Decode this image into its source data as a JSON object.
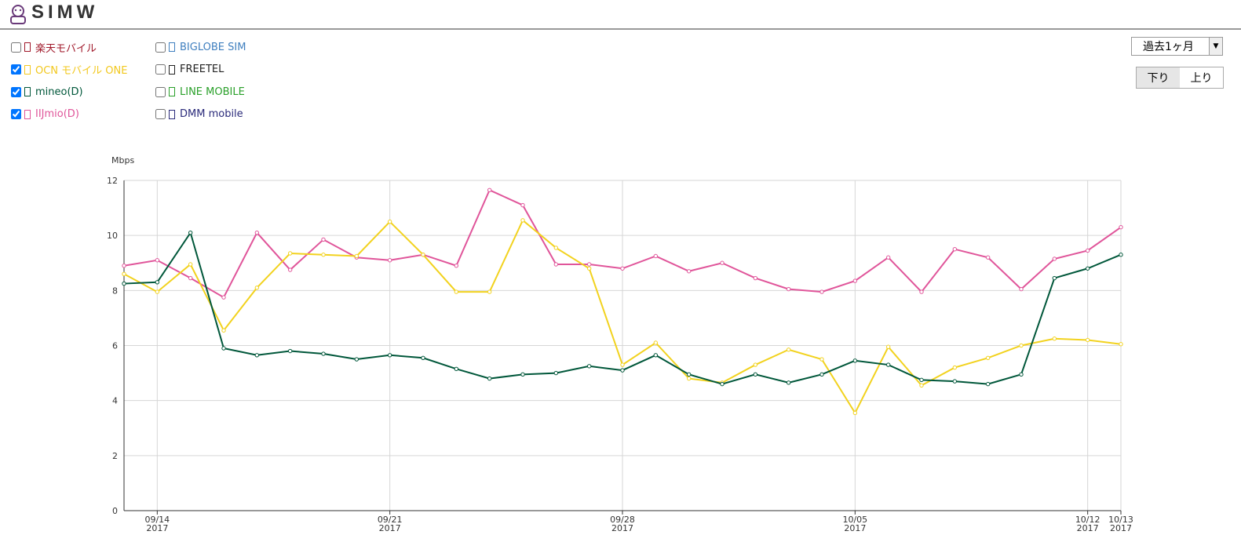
{
  "header": {
    "logo": "SIMW"
  },
  "controls": {
    "period": "過去1ヶ月",
    "buttons": [
      {
        "label": "下り",
        "active": true
      },
      {
        "label": "上り",
        "active": false
      }
    ]
  },
  "chart_data": {
    "type": "line",
    "y_label": "Mbps",
    "legend": [
      {
        "name": "楽天モバイル",
        "color": "#a0182a",
        "checked": false
      },
      {
        "name": "OCN モバイル ONE",
        "color": "#f2c81e",
        "checked": true
      },
      {
        "name": "mineo(D)",
        "color": "#00573a",
        "checked": true
      },
      {
        "name": "IIJmio(D)",
        "color": "#e0559a",
        "checked": true
      },
      {
        "name": "BIGLOBE SIM",
        "color": "#3f7fbf",
        "checked": false
      },
      {
        "name": "FREETEL",
        "color": "#222222",
        "checked": false
      },
      {
        "name": "LINE MOBILE",
        "color": "#2aa02a",
        "checked": false
      },
      {
        "name": "DMM mobile",
        "color": "#2a2a7a",
        "checked": false
      }
    ],
    "x": [
      "2017-09-13",
      "2017-09-14",
      "2017-09-15",
      "2017-09-16",
      "2017-09-17",
      "2017-09-18",
      "2017-09-19",
      "2017-09-20",
      "2017-09-21",
      "2017-09-22",
      "2017-09-23",
      "2017-09-24",
      "2017-09-25",
      "2017-09-26",
      "2017-09-27",
      "2017-09-28",
      "2017-09-29",
      "2017-09-30",
      "2017-10-01",
      "2017-10-02",
      "2017-10-03",
      "2017-10-04",
      "2017-10-05",
      "2017-10-06",
      "2017-10-07",
      "2017-10-08",
      "2017-10-09",
      "2017-10-10",
      "2017-10-11",
      "2017-10-12",
      "2017-10-13"
    ],
    "series": [
      {
        "color": "#e0559a",
        "values": [
          8.9,
          9.1,
          8.45,
          7.75,
          10.1,
          8.75,
          9.85,
          9.2,
          9.1,
          9.3,
          8.9,
          11.65,
          11.1,
          8.95,
          8.95,
          8.8,
          9.25,
          8.7,
          9.0,
          8.45,
          8.05,
          7.95,
          8.35,
          9.2,
          7.95,
          9.5,
          9.2,
          8.05,
          9.15,
          9.45,
          10.3
        ]
      },
      {
        "color": "#f2d21e",
        "values": [
          8.6,
          7.95,
          8.95,
          6.55,
          8.1,
          9.35,
          9.3,
          9.25,
          10.5,
          9.3,
          7.95,
          7.95,
          10.55,
          9.55,
          8.8,
          5.3,
          6.1,
          4.8,
          4.65,
          5.3,
          5.85,
          5.5,
          3.55,
          5.95,
          4.55,
          5.2,
          5.55,
          6.0,
          6.25,
          6.2,
          6.05
        ]
      },
      {
        "color": "#00573a",
        "values": [
          8.25,
          8.3,
          10.1,
          5.9,
          5.65,
          5.8,
          5.7,
          5.5,
          5.65,
          5.55,
          5.15,
          4.8,
          4.95,
          5.0,
          5.25,
          5.1,
          5.65,
          4.95,
          4.6,
          4.95,
          4.65,
          4.95,
          5.45,
          5.3,
          4.75,
          4.7,
          4.6,
          4.95,
          8.45,
          8.8,
          9.3
        ]
      }
    ],
    "xlim": [
      "2017-09-13",
      "2017-10-13"
    ],
    "xticks": [
      {
        "value": "2017-09-14",
        "label": [
          "09/14",
          "2017"
        ]
      },
      {
        "value": "2017-09-21",
        "label": [
          "09/21",
          "2017"
        ]
      },
      {
        "value": "2017-09-28",
        "label": [
          "09/28",
          "2017"
        ]
      },
      {
        "value": "2017-10-05",
        "label": [
          "10/05",
          "2017"
        ]
      },
      {
        "value": "2017-10-12",
        "label": [
          "10/12",
          "2017"
        ]
      },
      {
        "value": "2017-10-13",
        "label": [
          "10/13",
          "2017"
        ]
      }
    ],
    "ylim": [
      0,
      12
    ],
    "yticks": [
      0,
      2,
      4,
      6,
      8,
      10,
      12
    ],
    "grid": true
  }
}
